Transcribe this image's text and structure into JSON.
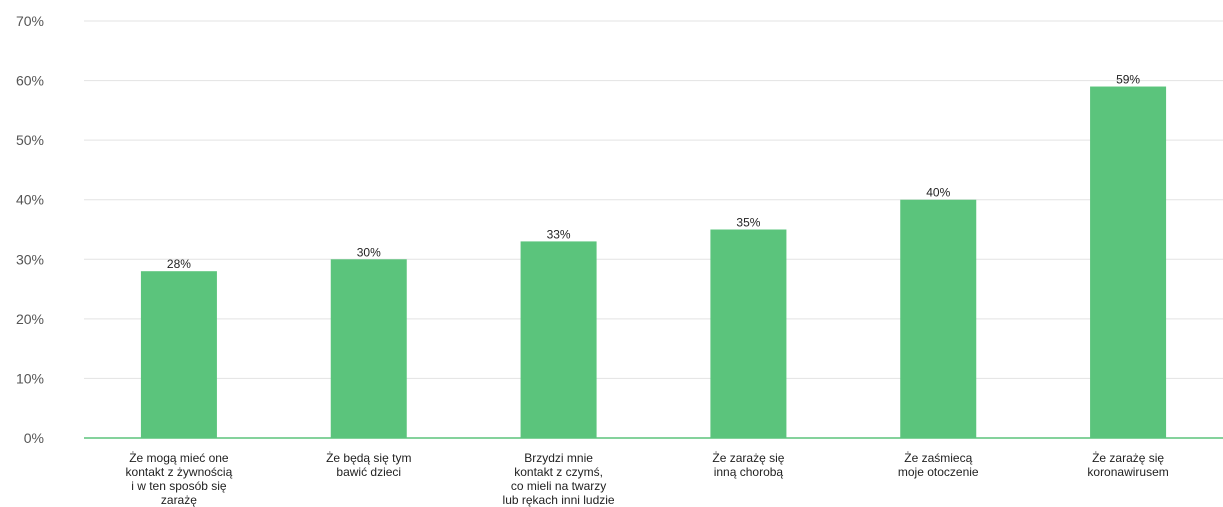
{
  "chart_data": {
    "type": "bar",
    "categories": [
      [
        "Że mogą mieć one",
        "kontakt z żywnością",
        "i w ten sposób się",
        "zarażę"
      ],
      [
        "Że będą się tym",
        "bawić dzieci"
      ],
      [
        "Brzydzi mnie",
        "kontakt z czymś,",
        "co mieli na twarzy",
        "lub rękach inni ludzie"
      ],
      [
        "Że zarażę się",
        "inną chorobą"
      ],
      [
        "Że zaśmiecą",
        "moje otoczenie"
      ],
      [
        "Że zarażę się",
        "koronawirusem"
      ]
    ],
    "values": [
      28,
      30,
      33,
      35,
      40,
      59
    ],
    "value_labels": [
      "28%",
      "30%",
      "33%",
      "35%",
      "40%",
      "59%"
    ],
    "y_ticks": [
      0,
      10,
      20,
      30,
      40,
      50,
      60,
      70
    ],
    "y_tick_labels": [
      "0%",
      "10%",
      "20%",
      "30%",
      "40%",
      "50%",
      "60%",
      "70%"
    ],
    "ylim": [
      0,
      70
    ],
    "grid": true,
    "bar_color": "#5bc47c",
    "axis_color": "#5bc47c",
    "grid_color": "#e3e3e3"
  }
}
